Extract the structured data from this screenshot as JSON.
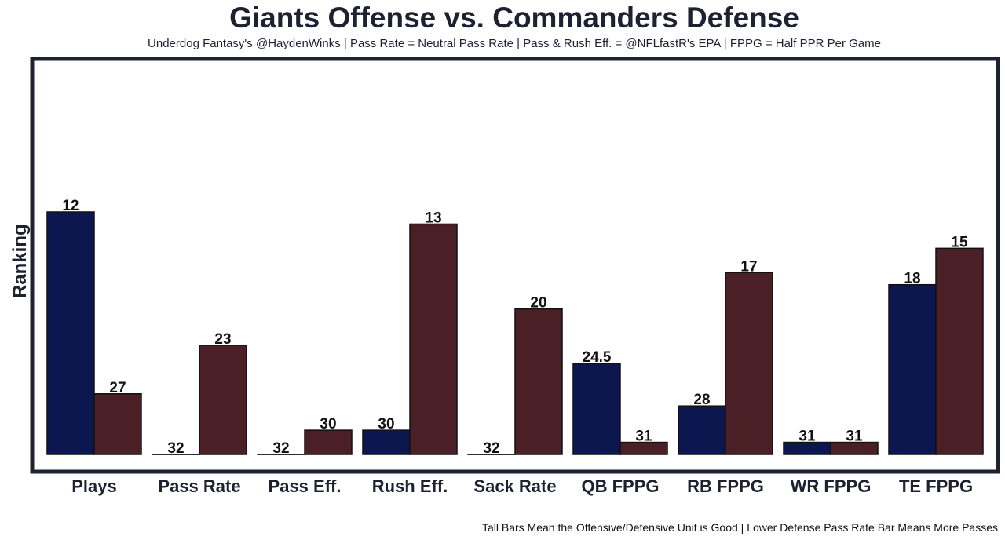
{
  "chart_data": {
    "type": "bar",
    "title": "Giants Offense vs. Commanders Defense",
    "subtitle": "Underdog Fantasy's @HaydenWinks | Pass Rate = Neutral Pass Rate | Pass & Rush Eff. = @NFLfastR's EPA | FPPG = Half PPR Per Game",
    "footnote": "Tall Bars Mean the Offensive/Defensive Unit is Good | Lower Defense Pass Rate Bar Means More Passes",
    "xlabel": "",
    "ylabel": "Ranking",
    "categories": [
      "Plays",
      "Pass Rate",
      "Pass Eff.",
      "Rush Eff.",
      "Sack Rate",
      "QB FPPG",
      "RB FPPG",
      "WR FPPG",
      "TE FPPG"
    ],
    "series": [
      {
        "name": "Giants Offense",
        "color": "#0c1750",
        "values": [
          12,
          32,
          32,
          30,
          32,
          24.5,
          28,
          31,
          18
        ]
      },
      {
        "name": "Commanders Defense",
        "color": "#4a2026",
        "values": [
          27,
          23,
          30,
          13,
          20,
          31,
          17,
          31,
          15
        ]
      }
    ],
    "bar_height_rule": "32 minus rank",
    "grid": false,
    "legend": "none"
  }
}
